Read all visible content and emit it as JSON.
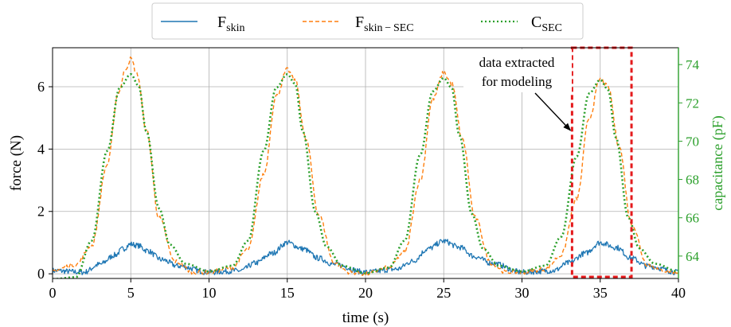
{
  "chart_data": {
    "type": "line",
    "xlabel": "time (s)",
    "ylabel_left": "force (N)",
    "ylabel_right": "capacitance (pF)",
    "xlim": [
      0,
      40
    ],
    "ylim_left": [
      -0.15,
      7.25
    ],
    "ylim_right": [
      62.83,
      74.88
    ],
    "x_ticks": [
      "0",
      "5",
      "10",
      "15",
      "20",
      "25",
      "30",
      "35",
      "40"
    ],
    "y_ticks_left": [
      "0",
      "2",
      "4",
      "6"
    ],
    "y_ticks_right": [
      "64",
      "66",
      "68",
      "70",
      "72",
      "74"
    ],
    "grid": true,
    "legend_position": "top-center, above plot",
    "legend": [
      {
        "label": "F",
        "sub": "skin",
        "color": "#1f77b4",
        "style": "solid"
      },
      {
        "label": "F",
        "sub": "skin − SEC",
        "color": "#ff7f0e",
        "style": "dashed"
      },
      {
        "label": "C",
        "sub": "SEC",
        "color": "#2ca02c",
        "style": "dotted"
      }
    ],
    "peaks": {
      "times": [
        5,
        15,
        25,
        35
      ],
      "F_skin": [
        0.95,
        1.0,
        1.05,
        1.0
      ],
      "F_skin_SEC": [
        6.9,
        6.55,
        6.45,
        6.25
      ],
      "C_SEC_pF": [
        73.5,
        73.5,
        73.3,
        73.2
      ]
    },
    "baselines": {
      "F_skin": 0.05,
      "F_skin_SEC": 0.05,
      "C_SEC_pF": 63.3
    },
    "series": [
      {
        "name": "F_skin",
        "axis": "left",
        "color": "#1f77b4",
        "x": [
          0,
          2,
          3,
          4,
          4.5,
          5,
          5.5,
          6,
          7,
          8,
          10,
          12,
          13,
          14,
          15,
          16,
          17,
          18,
          20,
          22,
          23,
          24,
          25,
          26,
          27,
          28,
          30,
          32,
          33,
          34,
          35,
          36,
          37,
          38,
          40
        ],
        "y": [
          0.1,
          0.05,
          0.3,
          0.6,
          0.8,
          0.95,
          0.9,
          0.75,
          0.45,
          0.25,
          0.05,
          0.1,
          0.35,
          0.65,
          1.0,
          0.8,
          0.5,
          0.3,
          0.05,
          0.15,
          0.4,
          0.8,
          1.05,
          0.85,
          0.55,
          0.35,
          0.05,
          0.1,
          0.35,
          0.65,
          1.0,
          0.85,
          0.5,
          0.25,
          0.05
        ]
      },
      {
        "name": "F_skin-SEC",
        "axis": "left",
        "color": "#ff7f0e",
        "x": [
          0,
          1.5,
          2.5,
          3.5,
          4.2,
          4.7,
          5,
          5.4,
          6,
          6.8,
          7.8,
          9,
          10,
          11.5,
          12.5,
          13.5,
          14.3,
          15,
          15.5,
          16.2,
          17,
          18,
          19,
          20,
          21.5,
          22.5,
          23.5,
          24.3,
          25,
          25.5,
          26.2,
          27,
          28,
          29,
          30,
          31.5,
          32.5,
          33.5,
          34.3,
          35,
          35.5,
          36.2,
          37,
          38,
          39,
          40
        ],
        "y": [
          0.1,
          0.3,
          0.9,
          3.5,
          5.8,
          6.6,
          6.9,
          6.4,
          4.6,
          1.8,
          0.4,
          0.05,
          0.05,
          0.2,
          0.8,
          3.2,
          5.7,
          6.55,
          6.2,
          4.3,
          1.9,
          0.35,
          0.05,
          0.0,
          0.2,
          0.7,
          3.0,
          5.6,
          6.45,
          6.1,
          4.3,
          1.8,
          0.35,
          0.05,
          0.05,
          0.15,
          0.6,
          2.4,
          5.0,
          6.25,
          6.0,
          4.1,
          1.6,
          0.3,
          0.1,
          0.05
        ]
      },
      {
        "name": "C_SEC",
        "axis": "right",
        "color": "#2ca02c",
        "x": [
          0,
          1.5,
          2.5,
          3.5,
          4.3,
          5,
          5.5,
          6,
          6.8,
          7.5,
          8.5,
          10,
          11.5,
          12.5,
          13.5,
          14.3,
          15,
          15.5,
          16,
          16.8,
          17.5,
          18.5,
          20,
          21.5,
          22.5,
          23.5,
          24.3,
          25,
          25.5,
          26,
          26.8,
          27.5,
          28.5,
          30,
          31.5,
          32.5,
          33.5,
          34.3,
          35,
          35.5,
          36,
          36.8,
          37.5,
          38.5,
          40
        ],
        "y": [
          62.8,
          62.9,
          64.8,
          69.5,
          72.8,
          73.5,
          72.9,
          70.5,
          66.5,
          64.6,
          63.6,
          63.2,
          63.5,
          64.8,
          69.5,
          72.8,
          73.5,
          73.0,
          70.5,
          66.3,
          64.5,
          63.5,
          63.1,
          63.4,
          64.8,
          69.3,
          72.6,
          73.3,
          72.8,
          70.3,
          66.2,
          64.4,
          63.5,
          63.2,
          63.5,
          65.0,
          69.2,
          72.5,
          73.2,
          72.7,
          70.2,
          66.0,
          64.4,
          63.6,
          63.2
        ]
      }
    ],
    "annotation": {
      "text_line1": "data extracted",
      "text_line2": "for modeling",
      "box_x": [
        33.2,
        37.0
      ],
      "box_y_left": [
        -0.1,
        7.25
      ],
      "arrow_to_x": 33.2,
      "arrow_to_y": 4.6,
      "box_color": "#e41a1c"
    }
  }
}
